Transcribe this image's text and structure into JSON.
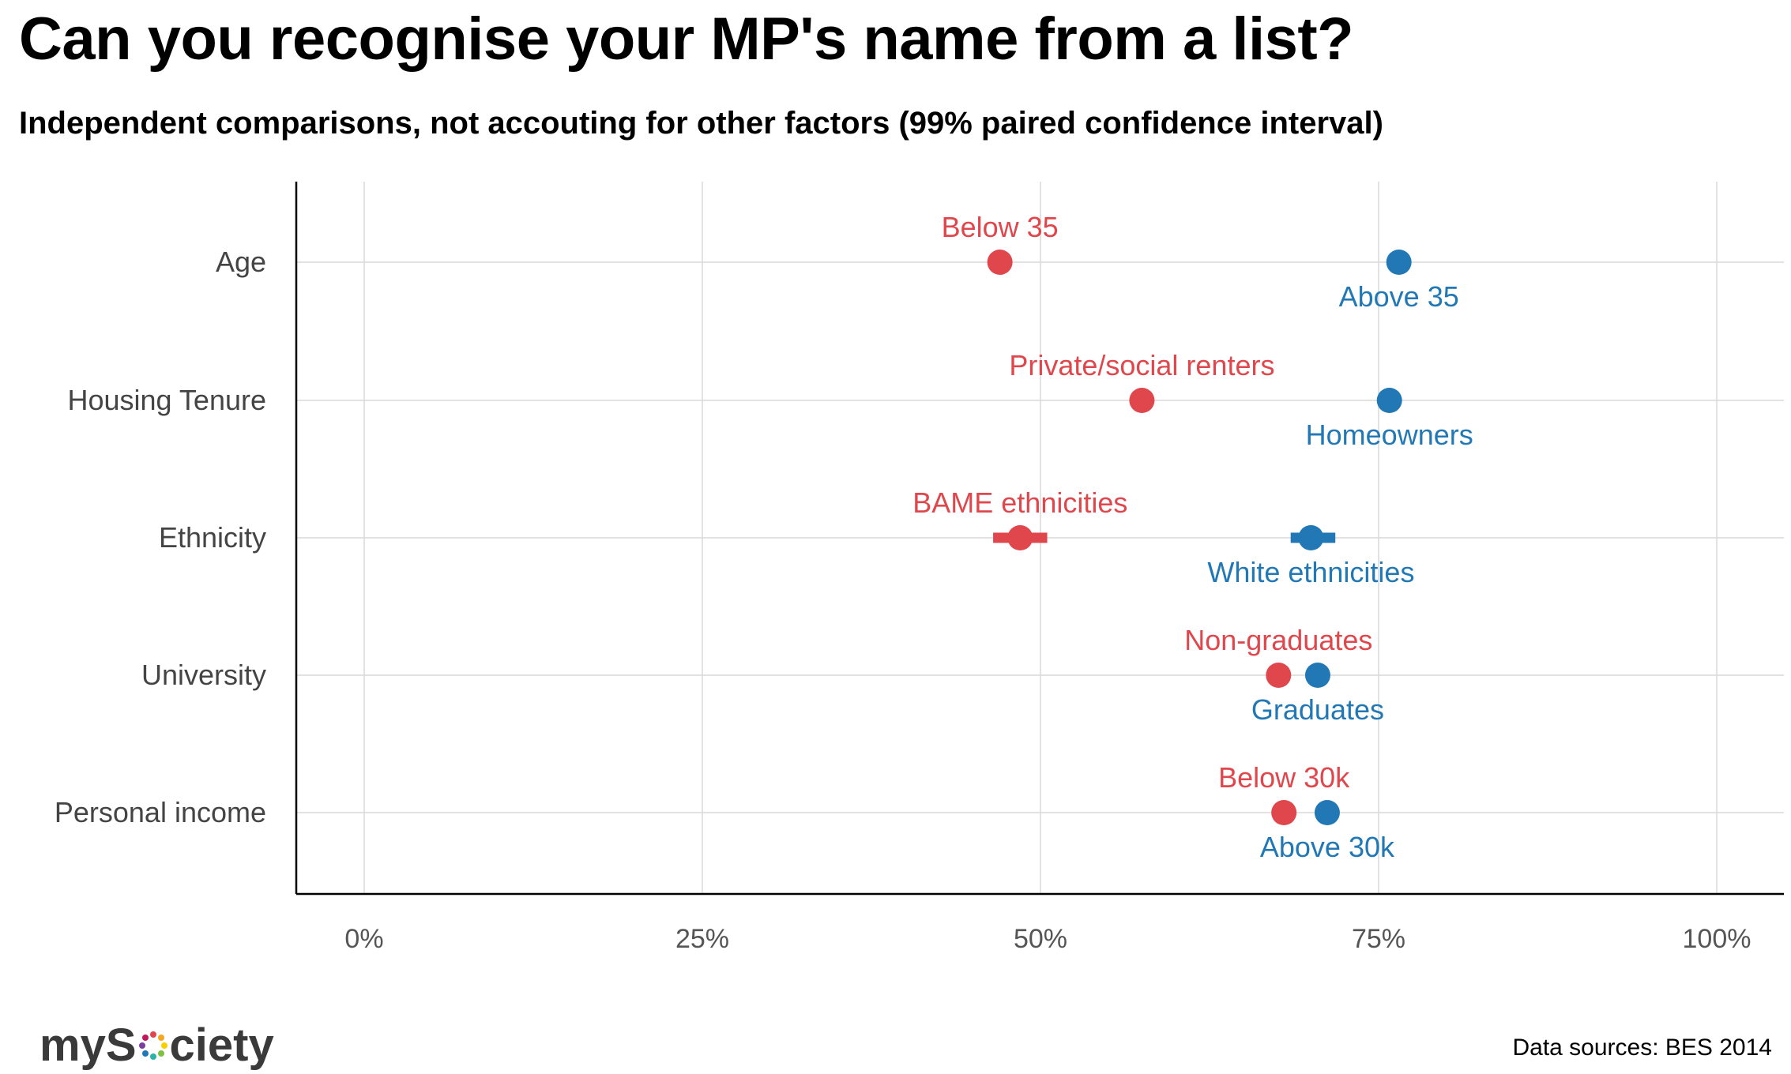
{
  "title": "Can you recognise your MP's name from a list?",
  "subtitle": "Independent comparisons, not accouting for other factors (99% paired confidence interval)",
  "source": "Data sources: BES 2014",
  "logo": {
    "prefix": "myS",
    "suffix": "ciety",
    "icon": "mysociety-dots-icon"
  },
  "colors": {
    "low": "#e0474c",
    "high": "#2178b5",
    "grid": "#d9d9d9",
    "axis": "#000000",
    "tick_text": "#555555"
  },
  "chart_data": {
    "type": "scatter",
    "xlim": [
      -0.1,
      1.05
    ],
    "x_ticks": [
      {
        "value": 0,
        "label": "0%"
      },
      {
        "value": 0.25,
        "label": "25%"
      },
      {
        "value": 0.5,
        "label": "50%"
      },
      {
        "value": 0.75,
        "label": "75%"
      },
      {
        "value": 1.0,
        "label": "100%"
      }
    ],
    "grid": true,
    "categories": [
      "Age",
      "Housing Tenure",
      "Ethnicity",
      "University",
      "Personal income"
    ],
    "series": [
      {
        "group": "low",
        "points": [
          {
            "category": "Age",
            "label": "Below 35",
            "value": 0.47,
            "ci": [
              0.463,
              0.477
            ]
          },
          {
            "category": "Housing Tenure",
            "label": "Private/social renters",
            "value": 0.575,
            "ci": [
              0.568,
              0.582
            ]
          },
          {
            "category": "Ethnicity",
            "label": "BAME ethnicities",
            "value": 0.485,
            "ci": [
              0.465,
              0.505
            ]
          },
          {
            "category": "University",
            "label": "Non-graduates",
            "value": 0.676,
            "ci": [
              0.67,
              0.682
            ]
          },
          {
            "category": "Personal income",
            "label": "Below 30k",
            "value": 0.68,
            "ci": [
              0.674,
              0.686
            ]
          }
        ]
      },
      {
        "group": "high",
        "points": [
          {
            "category": "Age",
            "label": "Above 35",
            "value": 0.765,
            "ci": [
              0.759,
              0.771
            ]
          },
          {
            "category": "Housing Tenure",
            "label": "Homeowners",
            "value": 0.758,
            "ci": [
              0.752,
              0.764
            ]
          },
          {
            "category": "Ethnicity",
            "label": "White ethnicities",
            "value": 0.7,
            "ci": [
              0.685,
              0.718
            ]
          },
          {
            "category": "University",
            "label": "Graduates",
            "value": 0.705,
            "ci": [
              0.699,
              0.711
            ]
          },
          {
            "category": "Personal income",
            "label": "Above 30k",
            "value": 0.712,
            "ci": [
              0.706,
              0.718
            ]
          }
        ]
      }
    ]
  }
}
